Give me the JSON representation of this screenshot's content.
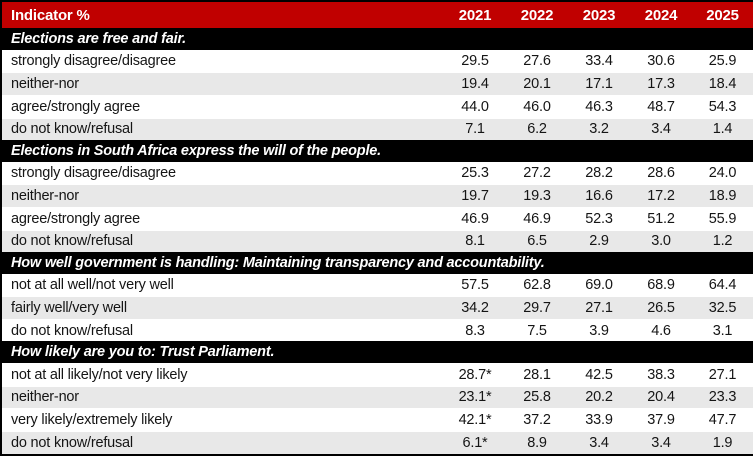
{
  "chart_data": {
    "type": "table",
    "header": {
      "indicator_label": "Indicator %",
      "years": [
        "2021",
        "2022",
        "2023",
        "2024",
        "2025"
      ]
    },
    "sections": [
      {
        "title": "Elections are free and fair.",
        "rows": [
          {
            "label": "strongly disagree/disagree",
            "values": [
              "29.5",
              "27.6",
              "33.4",
              "30.6",
              "25.9"
            ]
          },
          {
            "label": "neither-nor",
            "values": [
              "19.4",
              "20.1",
              "17.1",
              "17.3",
              "18.4"
            ]
          },
          {
            "label": "agree/strongly agree",
            "values": [
              "44.0",
              "46.0",
              "46.3",
              "48.7",
              "54.3"
            ]
          },
          {
            "label": "do not know/refusal",
            "values": [
              "7.1",
              "6.2",
              "3.2",
              "3.4",
              "1.4"
            ]
          }
        ]
      },
      {
        "title": "Elections in South Africa express the will of the people.",
        "rows": [
          {
            "label": "strongly disagree/disagree",
            "values": [
              "25.3",
              "27.2",
              "28.2",
              "28.6",
              "24.0"
            ]
          },
          {
            "label": "neither-nor",
            "values": [
              "19.7",
              "19.3",
              "16.6",
              "17.2",
              "18.9"
            ]
          },
          {
            "label": "agree/strongly agree",
            "values": [
              "46.9",
              "46.9",
              "52.3",
              "51.2",
              "55.9"
            ]
          },
          {
            "label": "do not know/refusal",
            "values": [
              "8.1",
              "6.5",
              "2.9",
              "3.0",
              "1.2"
            ]
          }
        ]
      },
      {
        "title": "How well government is handling: Maintaining transparency and accountability.",
        "rows": [
          {
            "label": "not at all well/not very well",
            "values": [
              "57.5",
              "62.8",
              "69.0",
              "68.9",
              "64.4"
            ]
          },
          {
            "label": "fairly well/very well",
            "values": [
              "34.2",
              "29.7",
              "27.1",
              "26.5",
              "32.5"
            ]
          },
          {
            "label": "do not know/refusal",
            "values": [
              "8.3",
              "7.5",
              "3.9",
              "4.6",
              "3.1"
            ]
          }
        ]
      },
      {
        "title": "How likely are you to: Trust Parliament.",
        "rows": [
          {
            "label": "not at all likely/not very likely",
            "values": [
              "28.7*",
              "28.1",
              "42.5",
              "38.3",
              "27.1"
            ]
          },
          {
            "label": "neither-nor",
            "values": [
              "23.1*",
              "25.8",
              "20.2",
              "20.4",
              "23.3"
            ]
          },
          {
            "label": "very likely/extremely likely",
            "values": [
              "42.1*",
              "37.2",
              "33.9",
              "37.9",
              "47.7"
            ]
          },
          {
            "label": "do not know/refusal",
            "values": [
              "6.1*",
              "8.9",
              "3.4",
              "3.4",
              "1.9"
            ]
          }
        ]
      }
    ]
  },
  "colors": {
    "header_bg": "#C00000",
    "header_text": "#FFFFFF",
    "section_bg": "#000000",
    "section_text": "#FFFFFF",
    "stripe_bg": "#E8E8E8",
    "row_bg": "#FFFFFF",
    "text": "#151515",
    "border": "#000000"
  }
}
